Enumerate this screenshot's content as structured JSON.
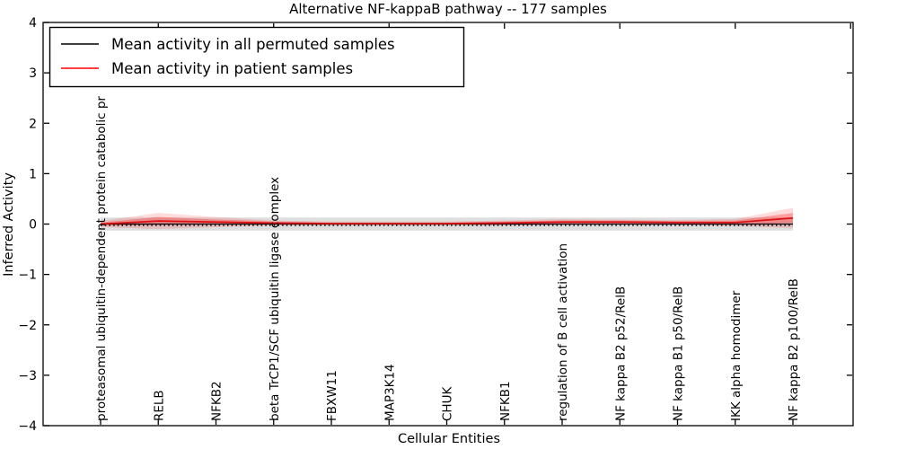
{
  "chart_data": {
    "type": "line",
    "title": "Alternative NF-kappaB pathway -- 177 samples",
    "xlabel": "Cellular Entities",
    "ylabel": "Inferred Activity",
    "ylim": [
      -4,
      4
    ],
    "ytick_values": [
      4,
      3,
      2,
      1,
      0,
      -1,
      -2,
      -3,
      -4
    ],
    "ytick_labels": [
      "4",
      "3",
      "2",
      "1",
      "0",
      "−1",
      "−2",
      "−3",
      "−4"
    ],
    "categories": [
      "proteasomal ubiquitin-dependent protein catabolic pr",
      "RELB",
      "NFKB2",
      "beta TrCP1/SCF ubiquitin ligase complex",
      "FBXW11",
      "MAP3K14",
      "CHUK",
      "NFKB1",
      "regulation of B cell activation",
      "NF kappa B2 p52/RelB",
      "NF kappa B1 p50/RelB",
      "IKK alpha homodimer",
      "NF kappa B2 p100/RelB"
    ],
    "series": [
      {
        "name": "Mean activity in all permuted samples",
        "color": "#000000",
        "values": [
          0.0,
          0.0,
          0.0,
          0.0,
          0.0,
          0.0,
          0.0,
          0.0,
          0.0,
          0.0,
          0.0,
          0.0,
          0.0
        ],
        "band": [
          0.13,
          0.13,
          0.13,
          0.13,
          0.13,
          0.13,
          0.13,
          0.13,
          0.13,
          0.13,
          0.13,
          0.13,
          0.13
        ],
        "band_color": "#000000",
        "band_opacity": 0.13
      },
      {
        "name": "Mean activity in patient samples",
        "color": "#dd1111",
        "values": [
          0.0,
          0.06,
          0.04,
          0.02,
          0.01,
          0.01,
          0.01,
          0.02,
          0.04,
          0.04,
          0.03,
          0.03,
          0.12
        ],
        "band": [
          0.06,
          0.16,
          0.1,
          0.05,
          0.04,
          0.04,
          0.04,
          0.05,
          0.06,
          0.05,
          0.05,
          0.07,
          0.2
        ],
        "inner_band": [
          0.03,
          0.08,
          0.05,
          0.03,
          0.02,
          0.02,
          0.02,
          0.03,
          0.03,
          0.03,
          0.03,
          0.04,
          0.1
        ],
        "band_color": "#ff0000",
        "band_opacity": 0.14,
        "inner_band_opacity": 0.28
      }
    ],
    "zero_line_style": "dotted",
    "legend_position": "upper left",
    "legend_line_colors": [
      "#000000",
      "#ff0000"
    ],
    "grid": false,
    "frame_color": "#000000"
  }
}
